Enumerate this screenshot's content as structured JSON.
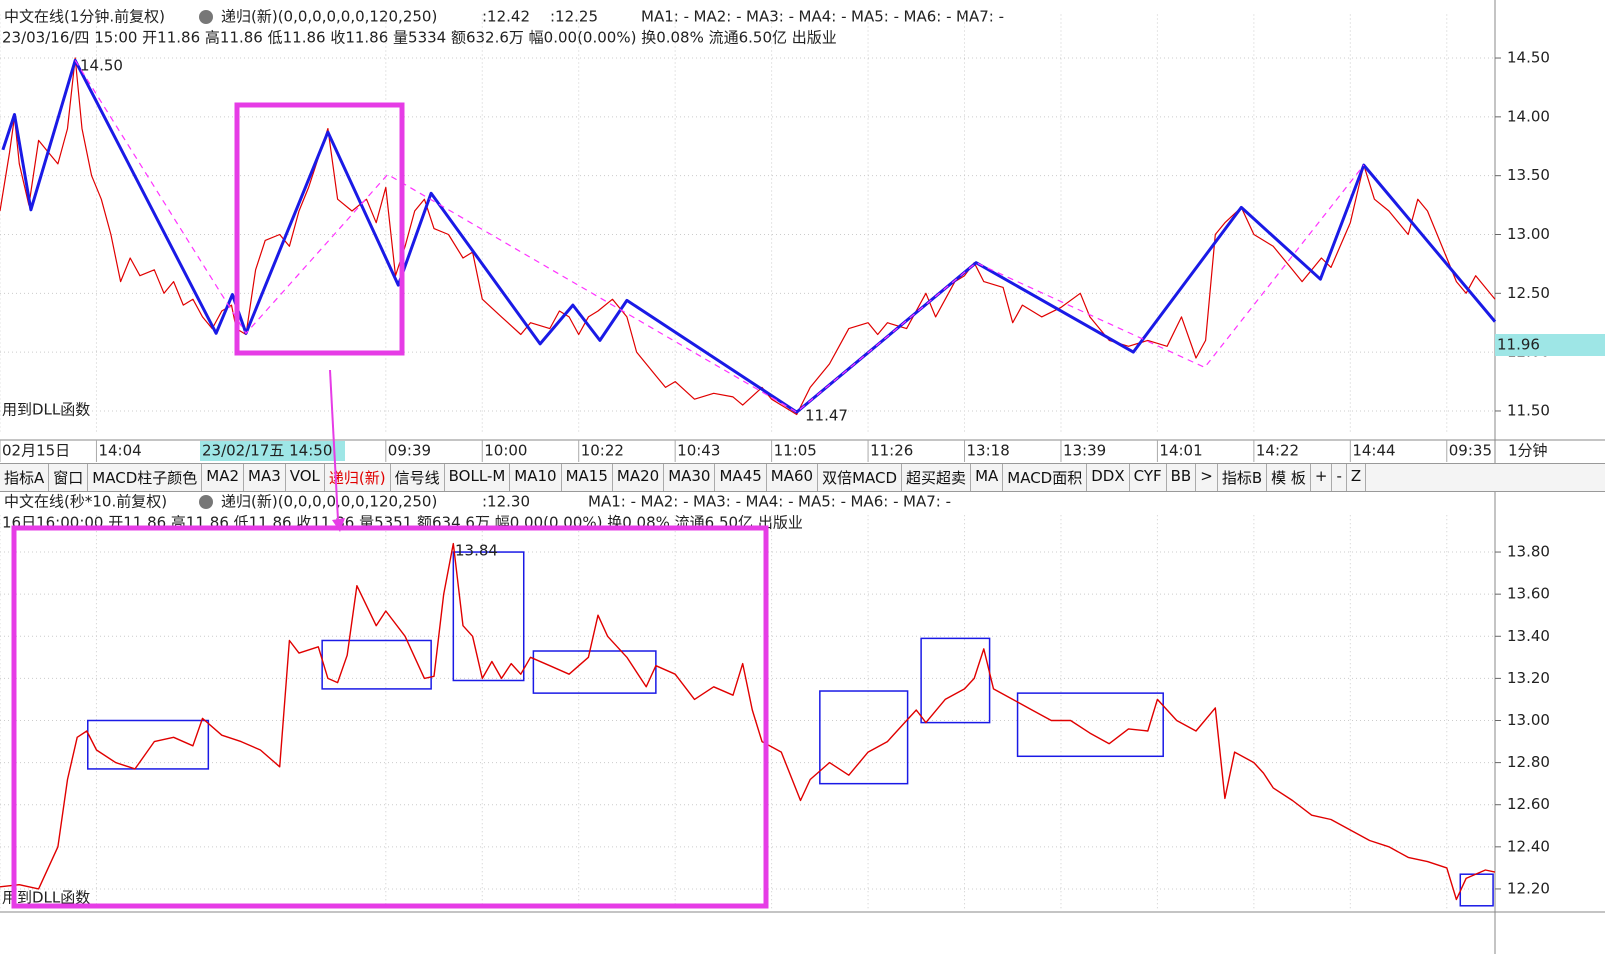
{
  "chart_data": [
    {
      "type": "line",
      "title": "中文在线(1分钟.前复权)",
      "indicator": "递归(新)(0,0,0,0,0,0,120,250)",
      "indicator_values": [
        {
          "label": ":12.42",
          "color": "#e00000"
        },
        {
          "label": ":12.25",
          "color": "#1010e0"
        }
      ],
      "ma_labels": [
        {
          "label": "MA1: -",
          "color": "#e00000"
        },
        {
          "label": "MA2: -",
          "color": "#ff00ff"
        },
        {
          "label": "MA3: -",
          "color": "#999900"
        },
        {
          "label": "MA4: -",
          "color": "#00c000"
        },
        {
          "label": "MA5: -",
          "color": "#1010e0"
        },
        {
          "label": "MA6: -",
          "color": "#006699"
        },
        {
          "label": "MA7: -",
          "color": "#ff00ff"
        }
      ],
      "info": "23/03/16/四 15:00 开11.86 高11.86 低11.86 收11.86 量5334 额632.6万 幅0.00(0.00%) 换0.08% 流通6.50亿 出版业",
      "cursor_label": "23/02/17五 14:50",
      "period_label": "1分钟",
      "price_tag": "11.96",
      "annotations": [
        "14.50",
        "11.47",
        "用到DLL函数"
      ],
      "grid": true,
      "xlim": [
        0,
        155
      ],
      "xticks": [
        {
          "value": 0,
          "label": "02月15日"
        },
        {
          "value": 10,
          "label": "14:04"
        },
        {
          "value": 40,
          "label": "09:39"
        },
        {
          "value": 50,
          "label": "10:00"
        },
        {
          "value": 60,
          "label": "10:22"
        },
        {
          "value": 70,
          "label": "10:43"
        },
        {
          "value": 80,
          "label": "11:05"
        },
        {
          "value": 90,
          "label": "11:26"
        },
        {
          "value": 100,
          "label": "13:18"
        },
        {
          "value": 110,
          "label": "13:39"
        },
        {
          "value": 120,
          "label": "14:01"
        },
        {
          "value": 130,
          "label": "14:22"
        },
        {
          "value": 140,
          "label": "14:44"
        },
        {
          "value": 150,
          "label": "09:35"
        }
      ],
      "ylim": [
        11.3,
        14.7
      ],
      "yticks": [
        {
          "value": 11.5,
          "label": "11.50"
        },
        {
          "value": 12,
          "label": "12.00"
        },
        {
          "value": 12.5,
          "label": "12.50"
        },
        {
          "value": 13,
          "label": "13.00"
        },
        {
          "value": 13.5,
          "label": "13.50"
        },
        {
          "value": 14,
          "label": "14.00"
        },
        {
          "value": 14.5,
          "label": "14.50"
        }
      ],
      "series": [
        {
          "color": "#e00000",
          "width": 1.2,
          "x": [
            0,
            1,
            1.5,
            2,
            3,
            4,
            5,
            6,
            7,
            7.8,
            8.5,
            9.5,
            10.5,
            11.5,
            12.5,
            13.5,
            14.5,
            16,
            17,
            18,
            19,
            20,
            21,
            22,
            23,
            24,
            24.5,
            25.5,
            26.5,
            27.5,
            29,
            30,
            31,
            32,
            34,
            35,
            36.5,
            38,
            39,
            40,
            41,
            42,
            43,
            44,
            45,
            46.5,
            48,
            49,
            50,
            52,
            54,
            55,
            57,
            58,
            59,
            60,
            61,
            62,
            63.5,
            65,
            66,
            67,
            68,
            69,
            70,
            72,
            74,
            76,
            77,
            79,
            80,
            81,
            82.6,
            84,
            86,
            87,
            88,
            90,
            91,
            92,
            94,
            96,
            97,
            99,
            100,
            101,
            102,
            104,
            105,
            106,
            108,
            110,
            112,
            113,
            115,
            117,
            119,
            121,
            122.5,
            124,
            125,
            126,
            127,
            128.7,
            130,
            132,
            134,
            135,
            137,
            138,
            140,
            141.4,
            142.5,
            144,
            146,
            147,
            148,
            150,
            151,
            152,
            153,
            155
          ],
          "values": [
            13.2,
            13.7,
            14,
            13.6,
            13.25,
            13.8,
            13.7,
            13.6,
            13.9,
            14.5,
            13.9,
            13.5,
            13.3,
            13,
            12.6,
            12.8,
            12.65,
            12.7,
            12.5,
            12.6,
            12.4,
            12.45,
            12.3,
            12.2,
            12.35,
            12.4,
            12.2,
            12.15,
            12.7,
            12.95,
            13,
            12.9,
            13.2,
            13.4,
            13.9,
            13.3,
            13.2,
            13.3,
            13.1,
            13.4,
            12.65,
            12.9,
            13.2,
            13.3,
            13.05,
            13,
            12.8,
            12.85,
            12.45,
            12.3,
            12.15,
            12.25,
            12.2,
            12.35,
            12.3,
            12.15,
            12.3,
            12.35,
            12.45,
            12.3,
            12,
            11.9,
            11.8,
            11.7,
            11.75,
            11.6,
            11.65,
            11.62,
            11.55,
            11.7,
            11.6,
            11.55,
            11.47,
            11.7,
            11.9,
            12.05,
            12.2,
            12.25,
            12.15,
            12.25,
            12.2,
            12.5,
            12.3,
            12.6,
            12.65,
            12.76,
            12.6,
            12.55,
            12.25,
            12.4,
            12.3,
            12.38,
            12.5,
            12.3,
            12.1,
            12.05,
            12.1,
            12.05,
            12.3,
            11.95,
            12.1,
            13,
            13.1,
            13.23,
            13,
            12.9,
            12.7,
            12.6,
            12.8,
            12.72,
            13.1,
            13.59,
            13.3,
            13.2,
            13,
            13.3,
            13.2,
            12.8,
            12.6,
            12.5,
            12.65,
            12.45
          ]
        },
        {
          "color": "#1a1ae6",
          "width": 3,
          "x": [
            0.3,
            1.5,
            3.2,
            7.8,
            22.4,
            24.1,
            25.5,
            34,
            41.3,
            44.7,
            56,
            59.4,
            62.2,
            65,
            82.6,
            101.2,
            117.5,
            128.7,
            136.9,
            141.4,
            155
          ],
          "values": [
            13.72,
            14.02,
            13.21,
            14.48,
            12.16,
            12.49,
            12.16,
            13.87,
            12.57,
            13.35,
            12.07,
            12.4,
            12.1,
            12.44,
            11.49,
            12.76,
            12,
            13.23,
            12.62,
            13.59,
            12.26
          ]
        },
        {
          "color": "#ff33ff",
          "width": 1.2,
          "dashed": true,
          "x": [
            7.8,
            25.5,
            40.2,
            82.6,
            101.2,
            124.9,
            141.4
          ],
          "values": [
            14.48,
            12.16,
            13.51,
            11.49,
            12.76,
            11.87,
            13.59
          ]
        }
      ]
    },
    {
      "type": "line",
      "title": "中文在线(秒*10.前复权)",
      "indicator": "递归(新)(0,0,0,0,0,0,120,250)",
      "indicator_values": [
        {
          "label": ":12.30",
          "color": "#e00000"
        }
      ],
      "ma_labels": [
        {
          "label": "MA1: -",
          "color": "#e00000"
        },
        {
          "label": "MA2: -",
          "color": "#ff00ff"
        },
        {
          "label": "MA3: -",
          "color": "#999900"
        },
        {
          "label": "MA4: -",
          "color": "#00c000"
        },
        {
          "label": "MA5: -",
          "color": "#1010e0"
        },
        {
          "label": "MA6: -",
          "color": "#006699"
        },
        {
          "label": "MA7: -",
          "color": "#ff00ff"
        }
      ],
      "info": "16日16:00:00 开11.86 高11.86 低11.86 收11.86 量5351 额634.6万 幅0.00(0.00%) 换0.08% 流通6.50亿 出版业",
      "annotations": [
        "13.84",
        "用到DLL函数"
      ],
      "grid": true,
      "xlim": [
        0,
        155
      ],
      "ylim": [
        12.1,
        13.88
      ],
      "yticks": [
        {
          "value": 12.2,
          "label": "12.20"
        },
        {
          "value": 12.4,
          "label": "12.40"
        },
        {
          "value": 12.6,
          "label": "12.60"
        },
        {
          "value": 12.8,
          "label": "12.80"
        },
        {
          "value": 13,
          "label": "13.00"
        },
        {
          "value": 13.2,
          "label": "13.20"
        },
        {
          "value": 13.4,
          "label": "13.40"
        },
        {
          "value": 13.6,
          "label": "13.60"
        },
        {
          "value": 13.8,
          "label": "13.80"
        }
      ],
      "series": [
        {
          "color": "#e00000",
          "width": 1.4,
          "x": [
            0,
            2,
            4,
            6,
            7,
            8,
            9,
            10,
            12,
            14,
            16,
            18,
            20,
            21,
            23,
            25,
            27,
            29,
            30,
            31,
            33,
            34,
            35,
            36,
            37,
            39,
            40,
            42,
            44,
            45,
            46,
            47,
            48,
            49,
            50,
            51,
            52,
            53,
            54,
            55,
            57,
            59,
            61,
            62,
            63,
            65,
            67,
            68,
            70,
            72,
            74,
            76,
            77,
            78,
            79,
            81,
            83,
            84,
            86,
            88,
            90,
            92,
            94,
            95,
            96,
            98,
            100,
            101,
            102,
            103,
            105,
            107,
            109,
            111,
            113,
            115,
            117,
            119,
            120,
            122,
            124,
            126,
            127,
            128,
            130,
            131,
            132,
            134,
            136,
            138,
            140,
            142,
            144,
            146,
            148,
            150,
            151,
            152,
            154,
            155
          ],
          "values": [
            12.21,
            12.22,
            12.2,
            12.4,
            12.72,
            12.92,
            12.95,
            12.86,
            12.8,
            12.77,
            12.9,
            12.92,
            12.88,
            13.01,
            12.93,
            12.9,
            12.86,
            12.78,
            13.38,
            13.32,
            13.35,
            13.2,
            13.18,
            13.31,
            13.64,
            13.45,
            13.52,
            13.4,
            13.2,
            13.21,
            13.6,
            13.84,
            13.45,
            13.4,
            13.2,
            13.28,
            13.2,
            13.27,
            13.22,
            13.3,
            13.26,
            13.22,
            13.3,
            13.5,
            13.4,
            13.3,
            13.16,
            13.26,
            13.22,
            13.1,
            13.16,
            13.12,
            13.27,
            13.05,
            12.9,
            12.85,
            12.62,
            12.72,
            12.8,
            12.74,
            12.85,
            12.9,
            13,
            13.05,
            12.99,
            13.1,
            13.15,
            13.2,
            13.34,
            13.15,
            13.1,
            13.05,
            13,
            13,
            12.94,
            12.89,
            12.96,
            12.95,
            13.1,
            13,
            12.95,
            13.06,
            12.63,
            12.85,
            12.8,
            12.75,
            12.68,
            12.62,
            12.55,
            12.53,
            12.48,
            12.43,
            12.4,
            12.35,
            12.33,
            12.3,
            12.15,
            12.25,
            12.29,
            12.28
          ]
        }
      ],
      "boxes": [
        {
          "x": [
            9.1,
            21.6
          ],
          "y": [
            12.77,
            13
          ]
        },
        {
          "x": [
            33.4,
            44.7
          ],
          "y": [
            13.15,
            13.38
          ]
        },
        {
          "x": [
            47,
            54.3
          ],
          "y": [
            13.19,
            13.8
          ]
        },
        {
          "x": [
            55.3,
            68
          ],
          "y": [
            13.13,
            13.33
          ]
        },
        {
          "x": [
            85,
            94.1
          ],
          "y": [
            12.7,
            13.14
          ]
        },
        {
          "x": [
            95.5,
            102.6
          ],
          "y": [
            12.99,
            13.39
          ]
        },
        {
          "x": [
            105.5,
            120.6
          ],
          "y": [
            12.83,
            13.13
          ]
        },
        {
          "x": [
            151.4,
            154.8
          ],
          "y": [
            12.12,
            12.27
          ]
        }
      ],
      "box_color": "#1a1ae6"
    }
  ],
  "toolbar": [
    "指标A",
    "窗口",
    "MACD柱子颜色",
    "MA2",
    "MA3",
    "VOL",
    "递归(新)",
    "信号线",
    "BOLL-M",
    "MA10",
    "MA15",
    "MA20",
    "MA30",
    "MA45",
    "MA60",
    "双倍MACD",
    "超买超卖",
    "MA",
    "MACD面积",
    "DDX",
    "CYF",
    "BB",
    ">",
    "指标B",
    "模 板",
    "+",
    "-",
    "Z"
  ],
  "toolbar_active": "递归(新)"
}
